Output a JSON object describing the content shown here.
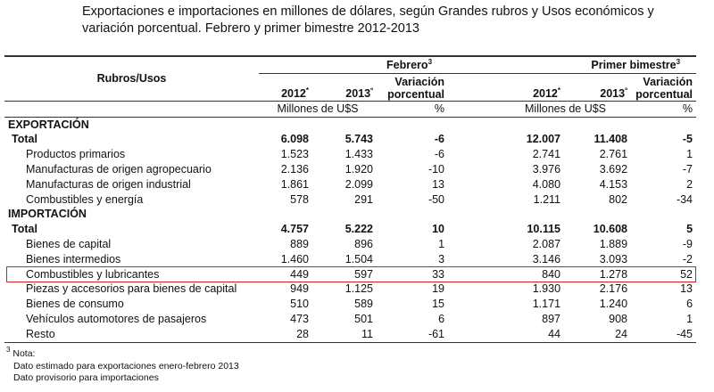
{
  "title": "Exportaciones e importaciones en millones de dólares, según Grandes rubros y Usos económicos y variación porcentual. Febrero y primer bimestre 2012-2013",
  "table": {
    "header": {
      "rubros": "Rubros/Usos",
      "groups": [
        {
          "label": "Febrero",
          "note": "3"
        },
        {
          "label": "Primer bimestre",
          "note": "3"
        }
      ],
      "columns": [
        {
          "label": "2012",
          "note": "*"
        },
        {
          "label": "2013",
          "note": "º"
        },
        {
          "label": "Variación porcentual"
        },
        {
          "label": "2012",
          "note": "*"
        },
        {
          "label": "2013",
          "note": "º"
        },
        {
          "label": "Variación porcentual"
        }
      ],
      "units": [
        {
          "label": "Millones de U$S"
        },
        {
          "label": "%"
        },
        {
          "label": "Millones de U$S"
        },
        {
          "label": "%"
        }
      ]
    },
    "sections": [
      {
        "title": "EXPORTACIÓN",
        "total": [
          "Total",
          "6.098",
          "5.743",
          "-6",
          "12.007",
          "11.408",
          "-5"
        ],
        "rows": [
          [
            "Productos primarios",
            "1.523",
            "1.433",
            "-6",
            "2.741",
            "2.761",
            "1"
          ],
          [
            "Manufacturas de origen agropecuario",
            "2.136",
            "1.920",
            "-10",
            "3.976",
            "3.692",
            "-7"
          ],
          [
            "Manufacturas de origen industrial",
            "1.861",
            "2.099",
            "13",
            "4.080",
            "4.153",
            "2"
          ],
          [
            "Combustibles y energía",
            "578",
            "291",
            "-50",
            "1.211",
            "802",
            "-34"
          ]
        ]
      },
      {
        "title": "IMPORTACIÓN",
        "total": [
          "Total",
          "4.757",
          "5.222",
          "10",
          "10.115",
          "10.608",
          "5"
        ],
        "rows": [
          [
            "Bienes de capital",
            "889",
            "896",
            "1",
            "2.087",
            "1.889",
            "-9"
          ],
          [
            "Bienes intermedios",
            "1.460",
            "1.504",
            "3",
            "3.146",
            "3.093",
            "-2"
          ],
          [
            "Combustibles y lubricantes",
            "449",
            "597",
            "33",
            "840",
            "1.278",
            "52"
          ],
          [
            "Piezas y accesorios para bienes de capital",
            "949",
            "1.125",
            "19",
            "1.930",
            "2.176",
            "13"
          ],
          [
            "Bienes de consumo",
            "510",
            "589",
            "15",
            "1.171",
            "1.240",
            "6"
          ],
          [
            "Vehículos automotores de pasajeros",
            "473",
            "501",
            "6",
            "897",
            "908",
            "1"
          ],
          [
            "Resto",
            "28",
            "11",
            "-61",
            "44",
            "24",
            "-45"
          ]
        ]
      }
    ]
  },
  "notes": {
    "marker": "3",
    "title": "Nota:",
    "lines": [
      "Dato estimado para exportaciones enero-febrero 2013",
      "Dato provisorio para importaciones"
    ]
  }
}
